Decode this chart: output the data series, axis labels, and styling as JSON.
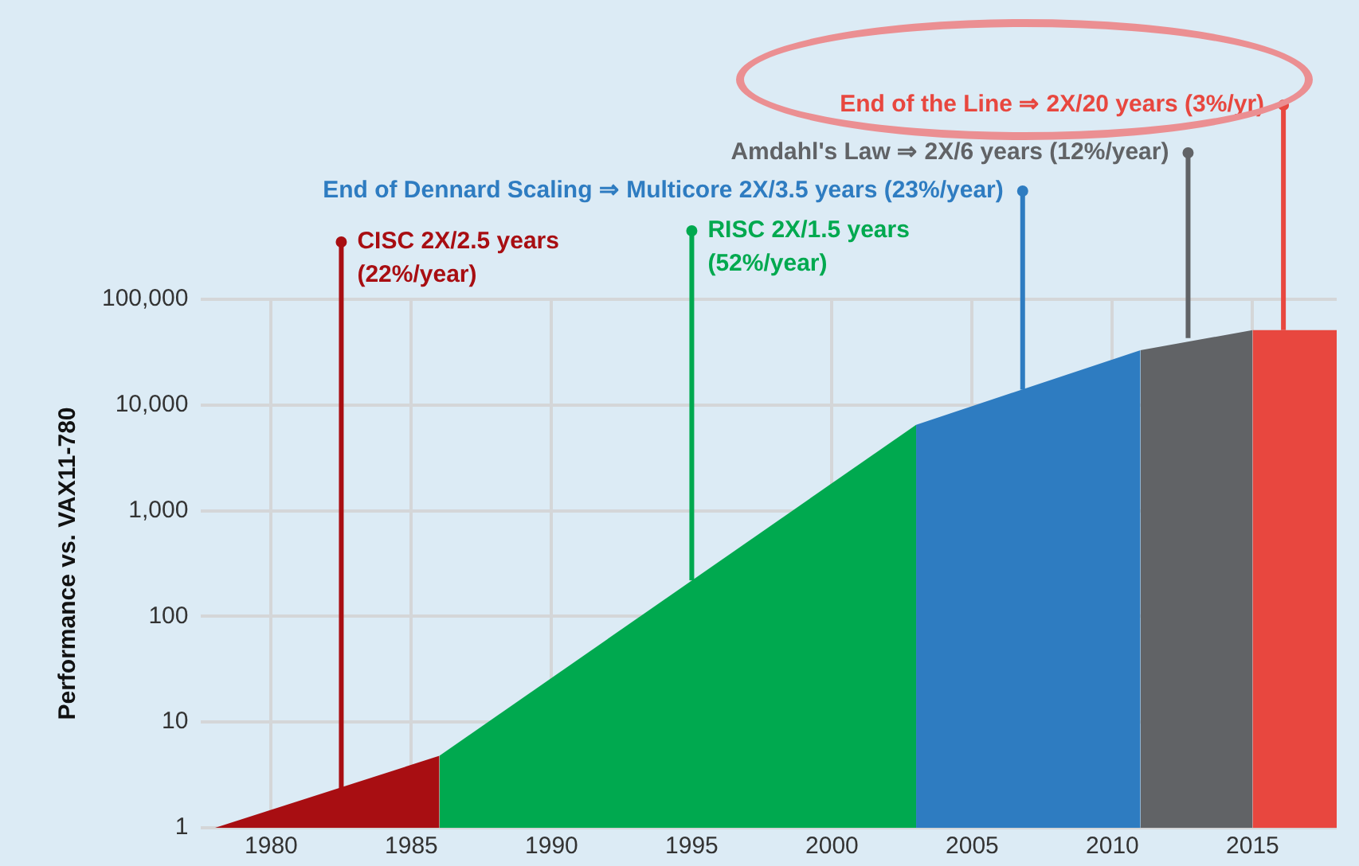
{
  "chart_data": {
    "type": "area",
    "ylabel": "Performance vs. VAX11-780",
    "log": "y",
    "grid": true,
    "legend": false,
    "xlim": [
      1977.5,
      2018
    ],
    "xticks": [
      1980,
      1985,
      1990,
      1995,
      2000,
      2005,
      2010,
      2015
    ],
    "ylim": [
      1,
      100000
    ],
    "yticks": [
      1,
      10,
      {
        "value": 100,
        "label": "100"
      },
      {
        "value": 1000,
        "label": "1,000"
      },
      {
        "value": 10000,
        "label": "10,000"
      },
      {
        "value": 100000,
        "label": "100,000"
      }
    ],
    "series": [
      {
        "color": "#a80e12",
        "x": [
          1978,
          1986
        ],
        "values": [
          1,
          4.8
        ]
      },
      {
        "color": "#00a94f",
        "x": [
          1986,
          2003
        ],
        "values": [
          4.8,
          6500
        ]
      },
      {
        "color": "#2e7cc1",
        "x": [
          2003,
          2011
        ],
        "values": [
          6500,
          33000
        ]
      },
      {
        "color": "#616366",
        "x": [
          2011,
          2015
        ],
        "values": [
          33000,
          51000
        ]
      },
      {
        "color": "#e8473f",
        "x": [
          2015,
          2018
        ],
        "values": [
          51000,
          51000
        ]
      }
    ],
    "annotations": [
      {
        "text": "CISC 2X/2.5 years\n(22%/year)",
        "x": 1982.5,
        "y": 2.3
      },
      {
        "text": "RISC 2X/1.5 years\n(52%/year)",
        "x": 1995,
        "y": 220
      },
      {
        "text": "End of Dennard Scaling ⇒ Multicore 2X/3.5 years (23%/year)",
        "x": 2006.8,
        "y": 14000
      },
      {
        "text": "Amdahl's Law ⇒ 2X/6 years (12%/year)",
        "x": 2012.7,
        "y": 43000
      },
      {
        "text": "End of the Line ⇒ 2X/20 years (3%/yr)",
        "x": 2016.1,
        "y": 51000
      }
    ]
  }
}
